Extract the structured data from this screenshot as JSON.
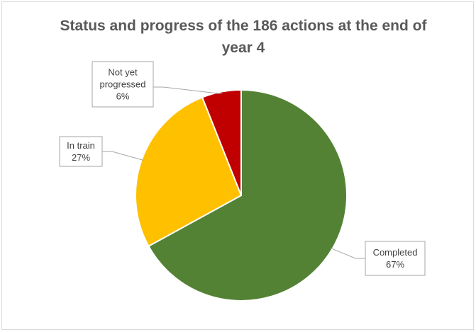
{
  "chart_data": {
    "type": "pie",
    "title": "Status and progress of the 186 actions at the end of year 4",
    "start_angle_deg": 0,
    "direction": "clockwise",
    "slices": [
      {
        "name": "Completed",
        "value": 67,
        "label": "67%",
        "color": "#548235"
      },
      {
        "name": "In train",
        "value": 27,
        "label": "27%",
        "color": "#ffc000"
      },
      {
        "name": "Not yet progressed",
        "value": 6,
        "label": "6%",
        "color": "#c00000"
      }
    ],
    "legend": "none",
    "data_labels": "callouts"
  }
}
